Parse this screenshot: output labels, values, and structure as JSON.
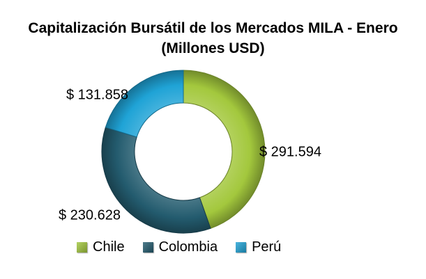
{
  "chart_data": {
    "type": "pie",
    "variant": "donut",
    "title_line1": "Capitalización Bursátil de los Mercados MILA - Enero",
    "title_line2": "(Millones USD)",
    "categories": [
      "Chile",
      "Colombia",
      "Perú"
    ],
    "values": [
      291594,
      230628,
      131858
    ],
    "labels": [
      "$ 291.594",
      "$ 230.628",
      "$ 131.858"
    ],
    "colors": [
      "#a3c83d",
      "#235b6e",
      "#1fa3d6"
    ],
    "legend_position": "bottom"
  }
}
